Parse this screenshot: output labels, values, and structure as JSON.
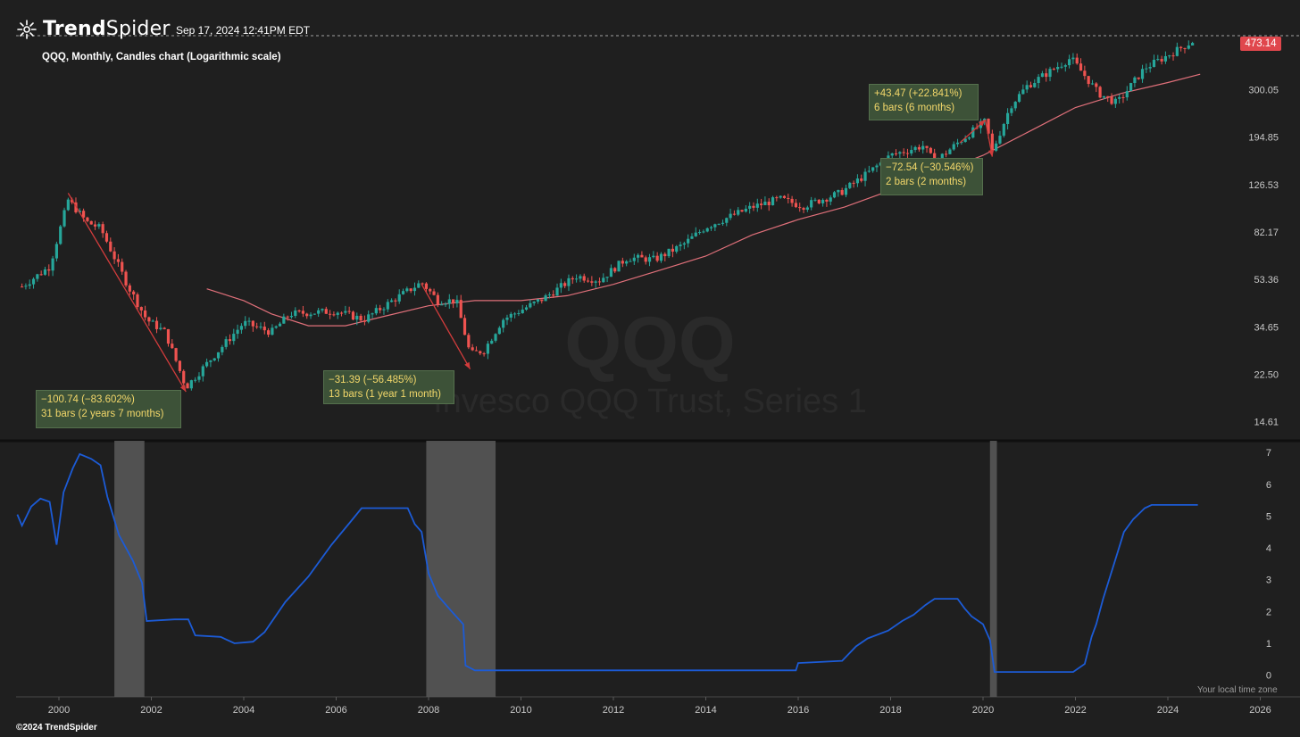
{
  "header": {
    "brand_name_bold": "Trend",
    "brand_name_rest": "Spider",
    "timestamp": "Sep 17, 2024 12:41PM EDT",
    "subtitle": "QQQ, Monthly, Candles chart (Logarithmic scale)",
    "last_price": "473.14"
  },
  "watermark": {
    "symbol": "QQQ",
    "name": "Invesco QQQ Trust, Series 1"
  },
  "annotations": [
    {
      "line1": "−100.74 (−83.602%)",
      "line2": "31 bars (2 years 7 months)"
    },
    {
      "line1": "−31.39 (−56.485%)",
      "line2": "13 bars (1 year 1 month)"
    },
    {
      "line1": "+43.47 (+22.841%)",
      "line2": "6 bars (6 months)"
    },
    {
      "line1": "−72.54 (−30.546%)",
      "line2": "2 bars (2 months)"
    }
  ],
  "footer": {
    "copyright": "©2024 TrendSpider",
    "tz_note": "Your local time zone"
  },
  "colors": {
    "background": "#1f1f1f",
    "up": "#26a69a",
    "down": "#ef5350",
    "ma": "#e0707a",
    "rate": "#1c5bd6",
    "recession": "#5a5a5a",
    "price_tag": "#e0474d",
    "annotation_bg": "#3d5238",
    "annotation_text": "#f2d76a"
  },
  "chart_data": [
    {
      "type": "candlestick",
      "title": "QQQ, Monthly, Candles chart (Logarithmic scale)",
      "y_scale": "log",
      "y_ticks": [
        "300.05",
        "194.85",
        "126.53",
        "82.17",
        "53.36",
        "34.65",
        "22.50",
        "14.61"
      ],
      "ylim": [
        12.7,
        490
      ],
      "last_price": 473.14,
      "anchors": [
        {
          "date": "1999.2",
          "close": 50
        },
        {
          "date": "1999.8",
          "close": 60
        },
        {
          "date": "2000.2",
          "close": 110
        },
        {
          "date": "2000.6",
          "close": 90
        },
        {
          "date": "2000.9",
          "close": 85
        },
        {
          "date": "2001.5",
          "close": 50
        },
        {
          "date": "2001.9",
          "close": 37
        },
        {
          "date": "2002.3",
          "close": 33
        },
        {
          "date": "2002.75",
          "close": 20
        },
        {
          "date": "2003.3",
          "close": 26
        },
        {
          "date": "2004.0",
          "close": 36
        },
        {
          "date": "2004.6",
          "close": 33
        },
        {
          "date": "2005.0",
          "close": 39
        },
        {
          "date": "2006.0",
          "close": 40
        },
        {
          "date": "2006.6",
          "close": 37
        },
        {
          "date": "2007.3",
          "close": 45
        },
        {
          "date": "2007.85",
          "close": 52
        },
        {
          "date": "2008.2",
          "close": 44
        },
        {
          "date": "2008.6",
          "close": 44
        },
        {
          "date": "2008.9",
          "close": 27
        },
        {
          "date": "2009.2",
          "close": 28
        },
        {
          "date": "2009.6",
          "close": 37
        },
        {
          "date": "2010.5",
          "close": 45
        },
        {
          "date": "2011.2",
          "close": 55
        },
        {
          "date": "2011.7",
          "close": 53
        },
        {
          "date": "2012.3",
          "close": 65
        },
        {
          "date": "2012.9",
          "close": 64
        },
        {
          "date": "2013.5",
          "close": 73
        },
        {
          "date": "2014.0",
          "close": 86
        },
        {
          "date": "2015.0",
          "close": 103
        },
        {
          "date": "2015.6",
          "close": 111
        },
        {
          "date": "2016.1",
          "close": 104
        },
        {
          "date": "2016.9",
          "close": 117
        },
        {
          "date": "2017.5",
          "close": 140
        },
        {
          "date": "2018.0",
          "close": 165
        },
        {
          "date": "2018.7",
          "close": 180
        },
        {
          "date": "2018.95",
          "close": 155
        },
        {
          "date": "2019.5",
          "close": 188
        },
        {
          "date": "2020.05",
          "close": 225
        },
        {
          "date": "2020.2",
          "close": 170
        },
        {
          "date": "2020.6",
          "close": 260
        },
        {
          "date": "2020.95",
          "close": 310
        },
        {
          "date": "2021.9",
          "close": 400
        },
        {
          "date": "2022.5",
          "close": 290
        },
        {
          "date": "2022.9",
          "close": 265
        },
        {
          "date": "2023.5",
          "close": 365
        },
        {
          "date": "2024.0",
          "close": 410
        },
        {
          "date": "2024.6",
          "close": 473
        }
      ],
      "moving_average": [
        {
          "date": "2003.2",
          "value": 49
        },
        {
          "date": "2004.0",
          "value": 44
        },
        {
          "date": "2004.6",
          "value": 39
        },
        {
          "date": "2005.4",
          "value": 35
        },
        {
          "date": "2006.2",
          "value": 35
        },
        {
          "date": "2007.0",
          "value": 38
        },
        {
          "date": "2008.0",
          "value": 42
        },
        {
          "date": "2009.0",
          "value": 44
        },
        {
          "date": "2010.0",
          "value": 44
        },
        {
          "date": "2011.0",
          "value": 46
        },
        {
          "date": "2012.0",
          "value": 51
        },
        {
          "date": "2013.0",
          "value": 58
        },
        {
          "date": "2014.0",
          "value": 66
        },
        {
          "date": "2015.0",
          "value": 80
        },
        {
          "date": "2016.0",
          "value": 92
        },
        {
          "date": "2017.0",
          "value": 103
        },
        {
          "date": "2018.0",
          "value": 120
        },
        {
          "date": "2019.0",
          "value": 140
        },
        {
          "date": "2020.0",
          "value": 165
        },
        {
          "date": "2021.0",
          "value": 205
        },
        {
          "date": "2022.0",
          "value": 255
        },
        {
          "date": "2023.0",
          "value": 290
        },
        {
          "date": "2024.0",
          "value": 320
        },
        {
          "date": "2024.7",
          "value": 345
        }
      ],
      "drawdowns": [
        {
          "from_date": "2000.2",
          "from_price": 117,
          "to_date": "2002.75",
          "to_price": 19.2
        },
        {
          "from_date": "2007.85",
          "from_price": 51,
          "to_date": "2008.9",
          "to_price": 23.6
        },
        {
          "from_date": "2019.5",
          "from_price": 185,
          "to_date": "2020.05",
          "to_price": 228
        },
        {
          "from_date": "2020.05",
          "from_price": 228,
          "to_date": "2020.2",
          "to_price": 163
        }
      ]
    },
    {
      "type": "line",
      "title": "",
      "y_ticks": [
        "7",
        "6",
        "5",
        "4",
        "3",
        "2",
        "1",
        "0"
      ],
      "ylim": [
        -0.6,
        7.2
      ],
      "recessions": [
        {
          "start": "2001.2",
          "end": "2001.85"
        },
        {
          "start": "2007.95",
          "end": "2009.45"
        },
        {
          "start": "2020.15",
          "end": "2020.3"
        }
      ],
      "points": [
        {
          "date": "1999.1",
          "value": 5.05
        },
        {
          "date": "1999.2",
          "value": 4.7
        },
        {
          "date": "1999.4",
          "value": 5.3
        },
        {
          "date": "1999.6",
          "value": 5.55
        },
        {
          "date": "1999.8",
          "value": 5.45
        },
        {
          "date": "1999.95",
          "value": 4.1
        },
        {
          "date": "2000.1",
          "value": 5.75
        },
        {
          "date": "2000.3",
          "value": 6.5
        },
        {
          "date": "2000.45",
          "value": 6.95
        },
        {
          "date": "2000.7",
          "value": 6.8
        },
        {
          "date": "2000.9",
          "value": 6.6
        },
        {
          "date": "2001.05",
          "value": 5.6
        },
        {
          "date": "2001.3",
          "value": 4.4
        },
        {
          "date": "2001.6",
          "value": 3.6
        },
        {
          "date": "2001.8",
          "value": 2.9
        },
        {
          "date": "2001.9",
          "value": 1.7
        },
        {
          "date": "2002.5",
          "value": 1.75
        },
        {
          "date": "2002.8",
          "value": 1.75
        },
        {
          "date": "2002.95",
          "value": 1.25
        },
        {
          "date": "2003.5",
          "value": 1.2
        },
        {
          "date": "2003.8",
          "value": 1.0
        },
        {
          "date": "2004.2",
          "value": 1.05
        },
        {
          "date": "2004.45",
          "value": 1.35
        },
        {
          "date": "2004.9",
          "value": 2.3
        },
        {
          "date": "2005.4",
          "value": 3.1
        },
        {
          "date": "2005.9",
          "value": 4.1
        },
        {
          "date": "2006.3",
          "value": 4.8
        },
        {
          "date": "2006.55",
          "value": 5.25
        },
        {
          "date": "2007.2",
          "value": 5.25
        },
        {
          "date": "2007.55",
          "value": 5.25
        },
        {
          "date": "2007.7",
          "value": 4.75
        },
        {
          "date": "2007.85",
          "value": 4.5
        },
        {
          "date": "2008.0",
          "value": 3.2
        },
        {
          "date": "2008.2",
          "value": 2.5
        },
        {
          "date": "2008.5",
          "value": 2.0
        },
        {
          "date": "2008.75",
          "value": 1.6
        },
        {
          "date": "2008.8",
          "value": 0.3
        },
        {
          "date": "2009.0",
          "value": 0.15
        },
        {
          "date": "2010.0",
          "value": 0.15
        },
        {
          "date": "2012.0",
          "value": 0.15
        },
        {
          "date": "2015.95",
          "value": 0.15
        },
        {
          "date": "2016.0",
          "value": 0.38
        },
        {
          "date": "2016.95",
          "value": 0.45
        },
        {
          "date": "2017.25",
          "value": 0.9
        },
        {
          "date": "2017.5",
          "value": 1.15
        },
        {
          "date": "2017.95",
          "value": 1.4
        },
        {
          "date": "2018.25",
          "value": 1.7
        },
        {
          "date": "2018.5",
          "value": 1.9
        },
        {
          "date": "2018.75",
          "value": 2.2
        },
        {
          "date": "2018.95",
          "value": 2.4
        },
        {
          "date": "2019.45",
          "value": 2.4
        },
        {
          "date": "2019.6",
          "value": 2.1
        },
        {
          "date": "2019.75",
          "value": 1.85
        },
        {
          "date": "2020.0",
          "value": 1.6
        },
        {
          "date": "2020.15",
          "value": 1.1
        },
        {
          "date": "2020.25",
          "value": 0.1
        },
        {
          "date": "2021.0",
          "value": 0.1
        },
        {
          "date": "2021.95",
          "value": 0.1
        },
        {
          "date": "2022.2",
          "value": 0.35
        },
        {
          "date": "2022.35",
          "value": 1.2
        },
        {
          "date": "2022.45",
          "value": 1.6
        },
        {
          "date": "2022.6",
          "value": 2.4
        },
        {
          "date": "2022.75",
          "value": 3.1
        },
        {
          "date": "2022.9",
          "value": 3.8
        },
        {
          "date": "2023.05",
          "value": 4.5
        },
        {
          "date": "2023.25",
          "value": 4.9
        },
        {
          "date": "2023.5",
          "value": 5.25
        },
        {
          "date": "2023.65",
          "value": 5.35
        },
        {
          "date": "2024.65",
          "value": 5.35
        }
      ]
    }
  ],
  "x_ticks": [
    "2000",
    "2002",
    "2004",
    "2006",
    "2008",
    "2010",
    "2012",
    "2014",
    "2016",
    "2018",
    "2020",
    "2022",
    "2024",
    "2026"
  ]
}
